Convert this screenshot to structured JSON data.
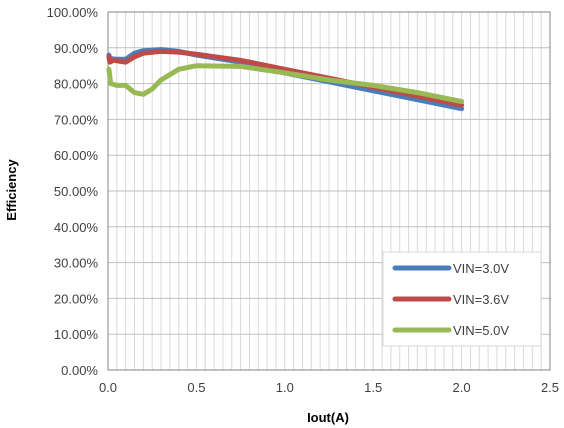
{
  "chart_data": {
    "type": "line",
    "title": "",
    "xlabel": "Iout(A)",
    "ylabel": "Efficiency",
    "xlim": [
      0,
      2.5
    ],
    "ylim": [
      0,
      1
    ],
    "x_ticks": [
      "0.0",
      "0.5",
      "1.0",
      "1.5",
      "2.0",
      "2.5"
    ],
    "y_ticks": [
      "0.00%",
      "10.00%",
      "20.00%",
      "30.00%",
      "40.00%",
      "50.00%",
      "60.00%",
      "70.00%",
      "80.00%",
      "90.00%",
      "100.00%"
    ],
    "grid": true,
    "legend_position": "bottom-right",
    "series": [
      {
        "name": "VIN=3.0V",
        "color": "#4a7ebb",
        "points": [
          [
            0.005,
            0.88
          ],
          [
            0.01,
            0.87
          ],
          [
            0.05,
            0.868
          ],
          [
            0.1,
            0.868
          ],
          [
            0.15,
            0.885
          ],
          [
            0.2,
            0.892
          ],
          [
            0.3,
            0.895
          ],
          [
            0.4,
            0.89
          ],
          [
            0.5,
            0.88
          ],
          [
            0.75,
            0.86
          ],
          [
            1.0,
            0.83
          ],
          [
            1.25,
            0.805
          ],
          [
            1.5,
            0.78
          ],
          [
            1.75,
            0.755
          ],
          [
            2.0,
            0.73
          ]
        ]
      },
      {
        "name": "VIN=3.6V",
        "color": "#be4b48",
        "points": [
          [
            0.005,
            0.875
          ],
          [
            0.01,
            0.86
          ],
          [
            0.03,
            0.865
          ],
          [
            0.1,
            0.86
          ],
          [
            0.15,
            0.875
          ],
          [
            0.2,
            0.885
          ],
          [
            0.3,
            0.89
          ],
          [
            0.4,
            0.888
          ],
          [
            0.5,
            0.882
          ],
          [
            0.75,
            0.865
          ],
          [
            1.0,
            0.84
          ],
          [
            1.25,
            0.815
          ],
          [
            1.5,
            0.79
          ],
          [
            1.75,
            0.765
          ],
          [
            2.0,
            0.74
          ]
        ]
      },
      {
        "name": "VIN=5.0V",
        "color": "#98b954",
        "points": [
          [
            0.005,
            0.84
          ],
          [
            0.015,
            0.8
          ],
          [
            0.05,
            0.795
          ],
          [
            0.1,
            0.795
          ],
          [
            0.15,
            0.775
          ],
          [
            0.2,
            0.77
          ],
          [
            0.25,
            0.785
          ],
          [
            0.3,
            0.81
          ],
          [
            0.4,
            0.84
          ],
          [
            0.5,
            0.85
          ],
          [
            0.75,
            0.848
          ],
          [
            1.0,
            0.83
          ],
          [
            1.25,
            0.81
          ],
          [
            1.5,
            0.795
          ],
          [
            1.75,
            0.775
          ],
          [
            2.0,
            0.75
          ]
        ]
      }
    ]
  }
}
